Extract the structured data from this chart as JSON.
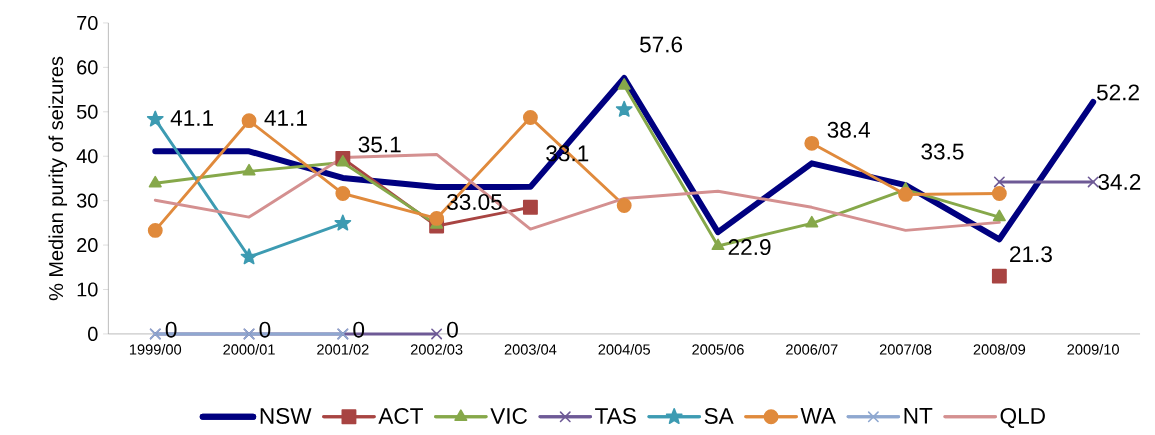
{
  "chart_data": {
    "type": "line",
    "ylabel": "% Median purity of seizures",
    "categories": [
      "1999/00",
      "2000/01",
      "2001/02",
      "2002/03",
      "2003/04",
      "2004/05",
      "2005/06",
      "2006/07",
      "2007/08",
      "2008/09",
      "2009/10"
    ],
    "ylim": [
      0,
      70
    ],
    "yticks": [
      0,
      10,
      20,
      30,
      40,
      50,
      60,
      70
    ],
    "grid": false,
    "legend": "bottom",
    "line_style": "solid",
    "series": [
      {
        "name": "NSW",
        "color": "#000080",
        "marker": "none",
        "values": [
          41.1,
          41.1,
          35.1,
          33.05,
          33.1,
          57.6,
          22.9,
          38.4,
          33.5,
          21.3,
          52.2
        ],
        "value_labels": [
          "41.1",
          "41.1",
          "35.1",
          "33.05",
          "33.1",
          "57.6",
          "22.9",
          "38.4",
          "33.5",
          "21.3",
          "52.2"
        ]
      },
      {
        "name": "ACT",
        "color": "#A84442",
        "marker": "square",
        "values": [
          null,
          null,
          39.5,
          24.3,
          28.5,
          null,
          null,
          null,
          null,
          13.0,
          null
        ]
      },
      {
        "name": "VIC",
        "color": "#86A84A",
        "marker": "triangle",
        "values": [
          33.9,
          36.6,
          38.6,
          24.6,
          null,
          55.9,
          19.8,
          24.9,
          32.5,
          26.3,
          null
        ]
      },
      {
        "name": "TAS",
        "color": "#6E5A96",
        "marker": "cross",
        "values": [
          0,
          0,
          0,
          0,
          null,
          null,
          null,
          null,
          null,
          34.2,
          34.2
        ],
        "value_labels": [
          "0",
          "0",
          "0",
          "0",
          null,
          null,
          null,
          null,
          null,
          null,
          "34.2"
        ]
      },
      {
        "name": "SA",
        "color": "#3D9BB2",
        "marker": "star",
        "values": [
          48.3,
          17.3,
          24.9,
          null,
          null,
          50.5,
          null,
          null,
          null,
          null,
          null
        ]
      },
      {
        "name": "WA",
        "color": "#E08A3C",
        "marker": "circle",
        "values": [
          23.3,
          48.0,
          31.6,
          26.0,
          48.7,
          28.9,
          null,
          42.9,
          31.4,
          31.6,
          null
        ]
      },
      {
        "name": "NT",
        "color": "#8FA8D0",
        "marker": "cross",
        "values": [
          0,
          0,
          0,
          null,
          null,
          null,
          null,
          null,
          null,
          null,
          null
        ]
      },
      {
        "name": "QLD",
        "color": "#D49090",
        "marker": "none",
        "values": [
          30.1,
          26.3,
          39.7,
          40.4,
          23.6,
          30.5,
          32.1,
          28.5,
          23.3,
          25.1,
          null
        ]
      }
    ]
  }
}
